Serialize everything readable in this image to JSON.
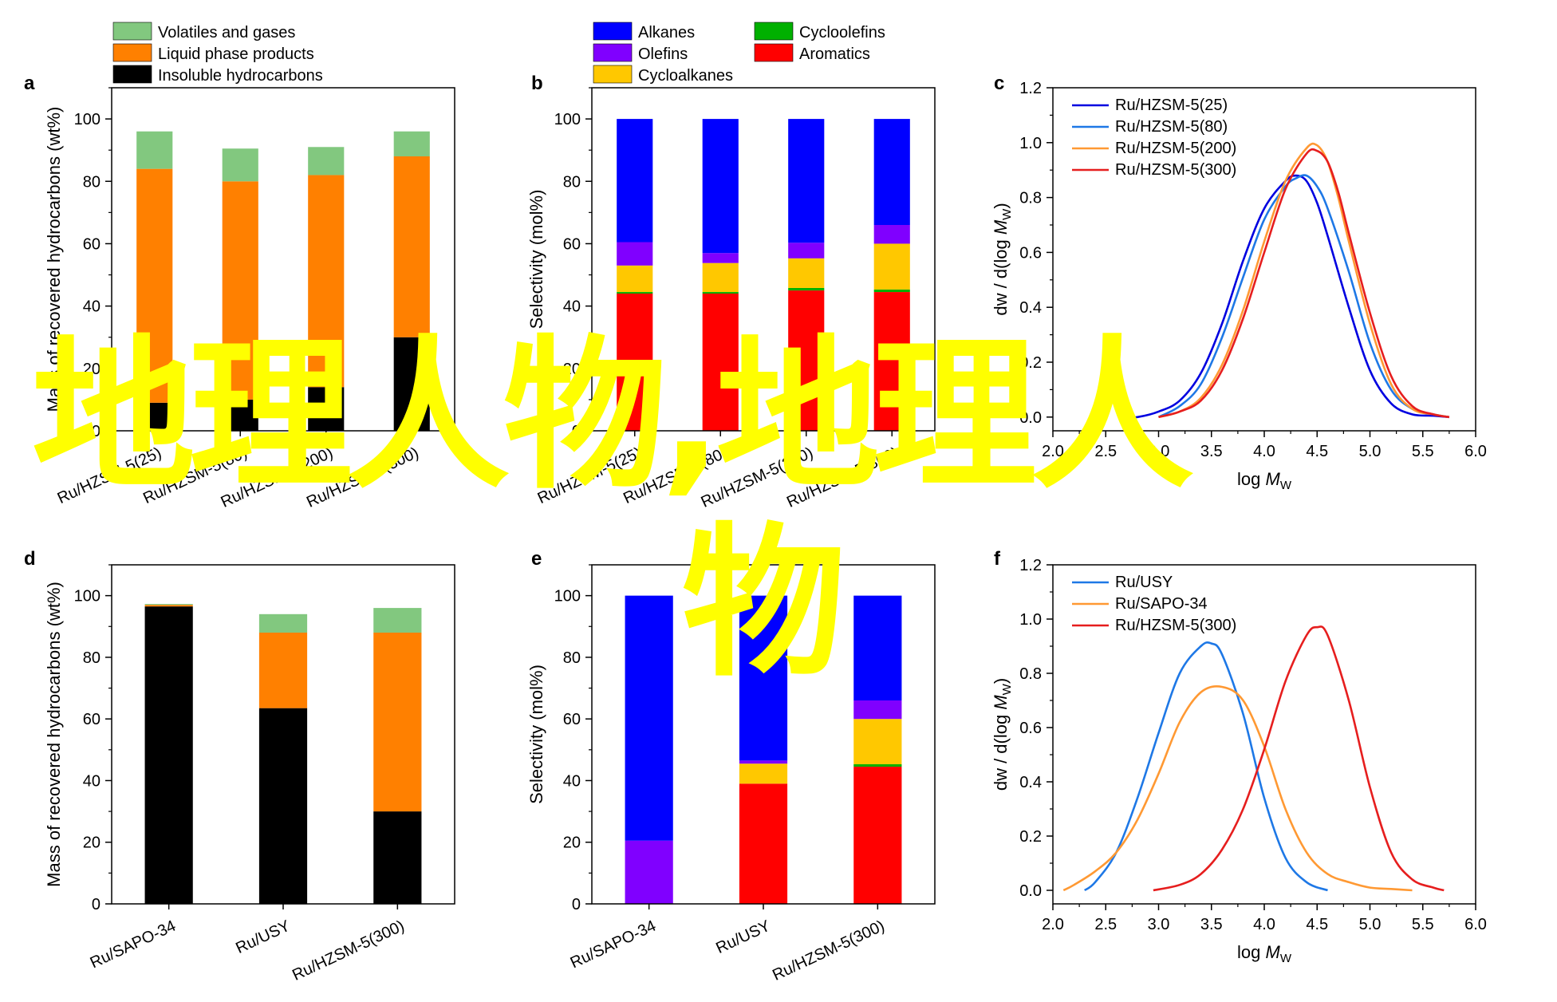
{
  "watermark": {
    "line1": "地理人物,地理人",
    "line2": "物",
    "color": "#ffff00"
  },
  "colors": {
    "volatiles": "#82c87f",
    "liquid": "#ff8000",
    "insoluble": "#000000",
    "alkanes": "#0000ff",
    "olefins": "#8000ff",
    "cycloalkanes": "#ffc800",
    "cycloolefins": "#00b000",
    "aromatics": "#ff0000",
    "c25": "#0000e0",
    "c80": "#1e78e6",
    "c200": "#ff9933",
    "c300": "#e61e1e",
    "usy": "#1e78e6",
    "sapo": "#ff9933",
    "hz300": "#e61e1e"
  },
  "chart_data": [
    {
      "panel": "a",
      "type": "bar",
      "stacked": true,
      "ylabel": "Mass of recovered hydrocarbons (wt%)",
      "ylim": [
        0,
        110
      ],
      "yticks": [
        0,
        20,
        40,
        60,
        80,
        100
      ],
      "categories": [
        "Ru/HZSM-5(25)",
        "Ru/HZSM-5(80)",
        "Ru/HZSM-5(200)",
        "Ru/HZSM-5(300)"
      ],
      "series": [
        {
          "name": "Insoluble hydrocarbons",
          "color_key": "insoluble",
          "values": [
            9,
            10,
            14,
            30
          ]
        },
        {
          "name": "Liquid phase products",
          "color_key": "liquid",
          "values": [
            75,
            70,
            68,
            58
          ]
        },
        {
          "name": "Volatiles and gases",
          "color_key": "volatiles",
          "values": [
            12,
            10.5,
            9,
            8
          ]
        }
      ],
      "legend": [
        "Volatiles and gases",
        "Liquid phase products",
        "Insoluble hydrocarbons"
      ]
    },
    {
      "panel": "b",
      "type": "bar",
      "stacked": true,
      "ylabel": "Selectivity (mol%)",
      "ylim": [
        0,
        110
      ],
      "yticks": [
        0,
        20,
        40,
        60,
        80,
        100
      ],
      "categories": [
        "Ru/HZSM-5(25)",
        "Ru/HZSM-5(80)",
        "Ru/HZSM-5(200)",
        "Ru/HZSM-5(300)"
      ],
      "series": [
        {
          "name": "Aromatics",
          "color_key": "aromatics",
          "values": [
            44,
            44,
            45,
            44.5
          ]
        },
        {
          "name": "Cycloolefins",
          "color_key": "cycloolefins",
          "values": [
            0.5,
            0.5,
            0.8,
            0.8
          ]
        },
        {
          "name": "Cycloalkanes",
          "color_key": "cycloalkanes",
          "values": [
            8.5,
            9.3,
            9.5,
            14.7
          ]
        },
        {
          "name": "Olefins",
          "color_key": "olefins",
          "values": [
            7.5,
            3.2,
            5,
            6
          ]
        },
        {
          "name": "Alkanes",
          "color_key": "alkanes",
          "values": [
            39.5,
            43,
            39.7,
            34
          ]
        }
      ],
      "legend": [
        "Alkanes",
        "Olefins",
        "Cycloalkanes",
        "Cycloolefins",
        "Aromatics"
      ]
    },
    {
      "panel": "c",
      "type": "line",
      "xlabel": "log M",
      "xlabel_sub": "W",
      "ylabel": "dw / d(log M",
      "ylabel_sub": "W",
      "ylabel_end": ")",
      "xlim": [
        2.0,
        6.0
      ],
      "ylim": [
        -0.05,
        1.2
      ],
      "xticks": [
        "2.0",
        "2.5",
        "3.0",
        "3.5",
        "4.0",
        "4.5",
        "5.0",
        "5.5",
        "6.0"
      ],
      "yticks": [
        "0.0",
        "0.2",
        "0.4",
        "0.6",
        "0.8",
        "1.0",
        "1.2"
      ],
      "series": [
        {
          "name": "Ru/HZSM-5(25)",
          "color_key": "c25",
          "x": [
            2.7,
            2.8,
            3.0,
            3.2,
            3.4,
            3.6,
            3.8,
            4.0,
            4.2,
            4.3,
            4.4,
            4.5,
            4.6,
            4.8,
            5.0,
            5.2,
            5.4,
            5.6,
            5.75
          ],
          "y": [
            0.0,
            0.0,
            0.02,
            0.06,
            0.16,
            0.34,
            0.57,
            0.76,
            0.86,
            0.88,
            0.86,
            0.78,
            0.66,
            0.4,
            0.17,
            0.05,
            0.01,
            0.005,
            0.0
          ]
        },
        {
          "name": "Ru/HZSM-5(80)",
          "color_key": "c80",
          "x": [
            3.0,
            3.2,
            3.4,
            3.6,
            3.8,
            4.0,
            4.2,
            4.3,
            4.4,
            4.5,
            4.6,
            4.8,
            5.0,
            5.2,
            5.4,
            5.6,
            5.75
          ],
          "y": [
            0.0,
            0.04,
            0.12,
            0.29,
            0.51,
            0.72,
            0.84,
            0.87,
            0.88,
            0.84,
            0.76,
            0.53,
            0.27,
            0.1,
            0.03,
            0.01,
            0.0
          ]
        },
        {
          "name": "Ru/HZSM-5(200)",
          "color_key": "c200",
          "x": [
            3.0,
            3.2,
            3.4,
            3.6,
            3.8,
            4.0,
            4.2,
            4.4,
            4.5,
            4.6,
            4.7,
            4.8,
            5.0,
            5.2,
            5.4,
            5.6,
            5.75
          ],
          "y": [
            0.0,
            0.02,
            0.07,
            0.19,
            0.39,
            0.64,
            0.86,
            0.98,
            0.99,
            0.93,
            0.8,
            0.64,
            0.34,
            0.12,
            0.03,
            0.01,
            0.0
          ]
        },
        {
          "name": "Ru/HZSM-5(300)",
          "color_key": "c300",
          "x": [
            3.0,
            3.2,
            3.4,
            3.6,
            3.8,
            4.0,
            4.2,
            4.4,
            4.5,
            4.6,
            4.7,
            4.8,
            5.0,
            5.2,
            5.4,
            5.6,
            5.75
          ],
          "y": [
            0.0,
            0.02,
            0.06,
            0.17,
            0.36,
            0.6,
            0.83,
            0.96,
            0.97,
            0.93,
            0.82,
            0.67,
            0.38,
            0.15,
            0.04,
            0.01,
            0.0
          ]
        }
      ]
    },
    {
      "panel": "d",
      "type": "bar",
      "stacked": true,
      "ylabel": "Mass of recovered hydrocarbons (wt%)",
      "ylim": [
        0,
        110
      ],
      "yticks": [
        0,
        20,
        40,
        60,
        80,
        100
      ],
      "categories": [
        "Ru/SAPO-34",
        "Ru/USY",
        "Ru/HZSM-5(300)"
      ],
      "series": [
        {
          "name": "Insoluble hydrocarbons",
          "color_key": "insoluble",
          "values": [
            96.5,
            63.5,
            30
          ]
        },
        {
          "name": "Liquid phase products",
          "color_key": "liquid",
          "values": [
            0.5,
            24.5,
            58
          ]
        },
        {
          "name": "Volatiles and gases",
          "color_key": "volatiles",
          "values": [
            0.3,
            6,
            8
          ]
        }
      ]
    },
    {
      "panel": "e",
      "type": "bar",
      "stacked": true,
      "ylabel": "Selectivity (mol%)",
      "ylim": [
        0,
        110
      ],
      "yticks": [
        0,
        20,
        40,
        60,
        80,
        100
      ],
      "categories": [
        "Ru/SAPO-34",
        "Ru/USY",
        "Ru/HZSM-5(300)"
      ],
      "series": [
        {
          "name": "Aromatics",
          "color_key": "aromatics",
          "values": [
            0,
            39,
            44.5
          ]
        },
        {
          "name": "Cycloolefins",
          "color_key": "cycloolefins",
          "values": [
            0,
            0,
            0.8
          ]
        },
        {
          "name": "Cycloalkanes",
          "color_key": "cycloalkanes",
          "values": [
            0,
            6.5,
            14.7
          ]
        },
        {
          "name": "Olefins",
          "color_key": "olefins",
          "values": [
            20.5,
            1,
            6
          ]
        },
        {
          "name": "Alkanes",
          "color_key": "alkanes",
          "values": [
            79.5,
            53.5,
            34
          ]
        }
      ]
    },
    {
      "panel": "f",
      "type": "line",
      "xlabel": "log M",
      "xlabel_sub": "W",
      "ylabel": "dw / d(log M",
      "ylabel_sub": "W",
      "ylabel_end": ")",
      "xlim": [
        2.0,
        6.0
      ],
      "ylim": [
        -0.05,
        1.2
      ],
      "xticks": [
        "2.0",
        "2.5",
        "3.0",
        "3.5",
        "4.0",
        "4.5",
        "5.0",
        "5.5",
        "6.0"
      ],
      "yticks": [
        "0.0",
        "0.2",
        "0.4",
        "0.6",
        "0.8",
        "1.0",
        "1.2"
      ],
      "series": [
        {
          "name": "Ru/USY",
          "color_key": "usy",
          "x": [
            2.3,
            2.4,
            2.6,
            2.8,
            3.0,
            3.2,
            3.4,
            3.5,
            3.6,
            3.8,
            4.0,
            4.2,
            4.4,
            4.6
          ],
          "y": [
            0.0,
            0.03,
            0.14,
            0.34,
            0.58,
            0.8,
            0.9,
            0.91,
            0.87,
            0.65,
            0.34,
            0.12,
            0.03,
            0.0
          ]
        },
        {
          "name": "Ru/SAPO-34",
          "color_key": "sapo",
          "x": [
            2.1,
            2.2,
            2.4,
            2.6,
            2.8,
            3.0,
            3.2,
            3.4,
            3.6,
            3.8,
            4.0,
            4.2,
            4.4,
            4.6,
            4.8,
            5.0,
            5.2,
            5.4
          ],
          "y": [
            0.0,
            0.02,
            0.07,
            0.14,
            0.26,
            0.43,
            0.62,
            0.73,
            0.75,
            0.7,
            0.53,
            0.3,
            0.14,
            0.06,
            0.03,
            0.01,
            0.005,
            0.0
          ]
        },
        {
          "name": "Ru/HZSM-5(300)",
          "color_key": "hz300",
          "x": [
            2.95,
            3.2,
            3.4,
            3.6,
            3.8,
            4.0,
            4.2,
            4.4,
            4.5,
            4.6,
            4.8,
            5.0,
            5.2,
            5.4,
            5.6,
            5.7
          ],
          "y": [
            0.0,
            0.02,
            0.06,
            0.15,
            0.3,
            0.52,
            0.77,
            0.94,
            0.97,
            0.94,
            0.7,
            0.38,
            0.14,
            0.04,
            0.01,
            0.0
          ]
        }
      ]
    }
  ]
}
